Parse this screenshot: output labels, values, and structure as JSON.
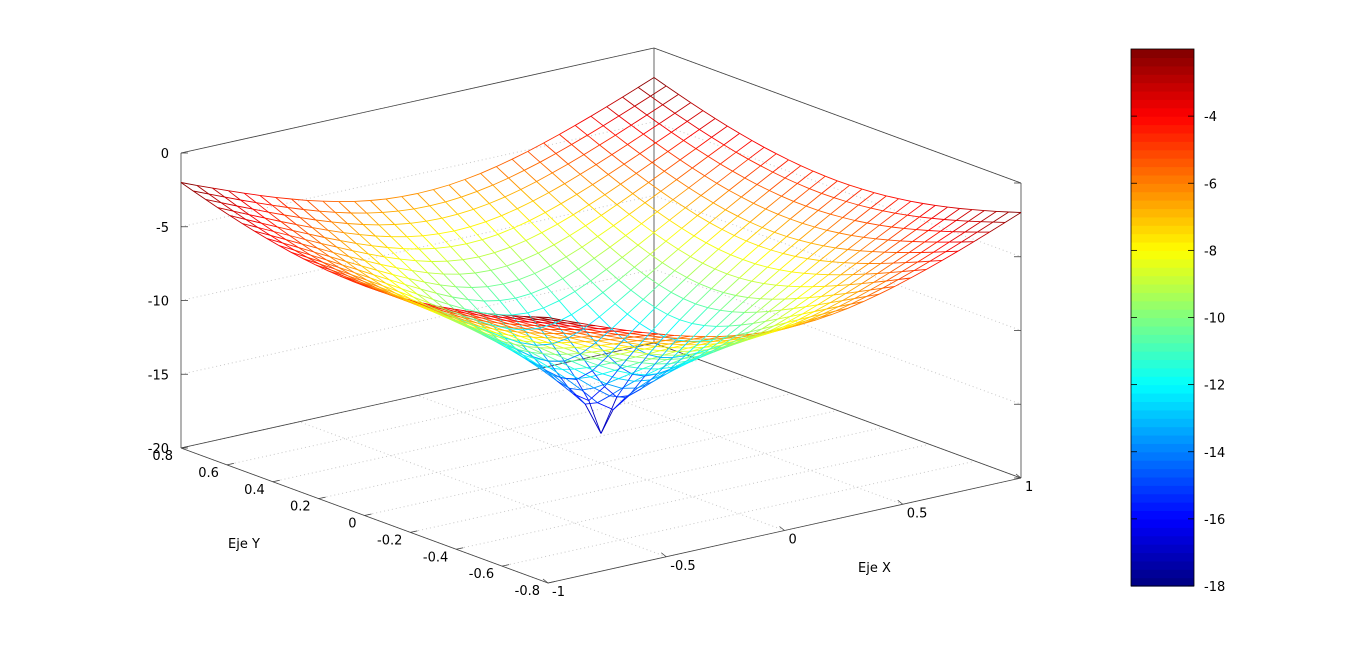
{
  "chart_data": {
    "type": "surface",
    "title": "",
    "xlabel": "Eje X",
    "ylabel": "Eje Y",
    "zlabel": "",
    "xlim": [
      -1,
      1
    ],
    "ylim": [
      -0.8,
      0.8
    ],
    "zlim": [
      -20,
      0
    ],
    "x_ticks": [
      "-1",
      "-0.5",
      "0",
      "0.5",
      "1"
    ],
    "y_ticks": [
      "-0.8",
      "-0.6",
      "-0.4",
      "-0.2",
      "0",
      "0.2",
      "0.4",
      "0.6",
      "0.8"
    ],
    "z_ticks": [
      "0",
      "-5",
      "-10",
      "-15",
      "-20"
    ],
    "grid": true,
    "colorbar": {
      "colormap": "jet",
      "range": [
        -18,
        -2
      ],
      "ticks": [
        "-4",
        "-6",
        "-8",
        "-10",
        "-12",
        "-14",
        "-16",
        "-18"
      ]
    },
    "surface": {
      "function": "z = -18 + 16*((x^2+y^2)/1.64)^(1/3)",
      "x_range": [
        -1,
        1
      ],
      "y_range": [
        -0.8,
        0.8
      ],
      "values_sample": {
        "at_origin": -18,
        "at_corner": -2
      }
    }
  }
}
